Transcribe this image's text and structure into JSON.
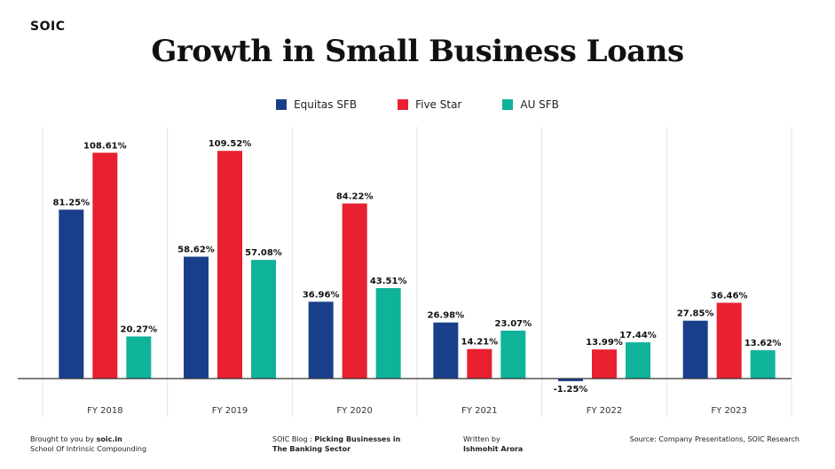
{
  "brand": "SOIC",
  "footer": {
    "brought_prefix": "Brought to you by ",
    "brought_site": "soic.in",
    "brought_line2": "School Of Intrinsic Compounding",
    "blog_prefix": "SOIC Blog : ",
    "blog_title_line1": "Picking Businesses in",
    "blog_title_line2": "The Banking Sector",
    "written_by_label": "Written by",
    "author": "Ishmohit Arora",
    "source": "Source: Company Presentations, SOIC Research"
  },
  "colors": {
    "Equitas SFB": "#1a3f8a",
    "Five Star": "#e8202f",
    "AU SFB": "#0fb39a",
    "grid": "#e3e3e3",
    "axis": "#333333"
  },
  "chart_data": {
    "type": "bar",
    "title": "Growth in Small Business Loans",
    "categories": [
      "FY 2018",
      "FY 2019",
      "FY 2020",
      "FY 2021",
      "FY 2022",
      "FY 2023"
    ],
    "series": [
      {
        "name": "Equitas SFB",
        "values": [
          81.25,
          58.62,
          36.96,
          26.98,
          -1.25,
          27.85
        ],
        "labels": [
          "81.25%",
          "58.62%",
          "36.96%",
          "26.98%",
          "-1.25%",
          "27.85%"
        ]
      },
      {
        "name": "Five Star",
        "values": [
          108.61,
          109.52,
          84.22,
          14.21,
          13.99,
          36.46
        ],
        "labels": [
          "108.61%",
          "109.52%",
          "84.22%",
          "14.21%",
          "13.99%",
          "36.46%"
        ]
      },
      {
        "name": "AU SFB",
        "values": [
          20.27,
          57.08,
          43.51,
          23.07,
          17.44,
          13.62
        ],
        "labels": [
          "20.27%",
          "57.08%",
          "43.51%",
          "23.07%",
          "17.44%",
          "13.62%"
        ]
      }
    ],
    "xlabel": "",
    "ylabel": "",
    "ylim": [
      -5,
      112
    ],
    "legend_position": "top-center",
    "grid": "vertical separators between categories"
  }
}
